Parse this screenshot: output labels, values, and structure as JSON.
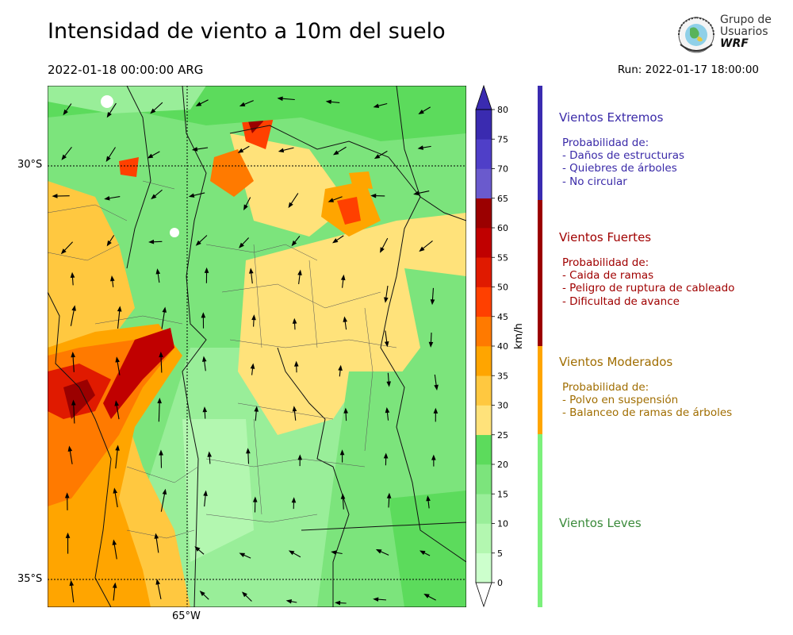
{
  "title": "Intensidad de viento a 10m del suelo",
  "valid_time": "2022-01-18 00:00:00 ARG",
  "run_time": "Run: 2022-01-17 18:00:00",
  "logo": {
    "line1": "Grupo de",
    "line2": "Usuarios",
    "line3": "WRF"
  },
  "map": {
    "lat_labels": [
      "30°S",
      "35°S"
    ],
    "lon_labels": [
      "65°W"
    ]
  },
  "colorbar": {
    "units": "km/h",
    "ticks": [
      "0",
      "5",
      "10",
      "15",
      "20",
      "25",
      "30",
      "35",
      "40",
      "45",
      "50",
      "55",
      "60",
      "65",
      "70",
      "75",
      "80"
    ],
    "colors": [
      "#ffffff",
      "#ccffcc",
      "#b3f7b0",
      "#99ee99",
      "#7ce47c",
      "#5cdb5c",
      "#ffe27a",
      "#ffc840",
      "#ffa500",
      "#ff7a00",
      "#ff4000",
      "#e01a00",
      "#c00000",
      "#9b0000",
      "#6a5acd",
      "#4f3fc8",
      "#3a2bb0"
    ]
  },
  "categories": [
    {
      "name": "Vientos Extremos",
      "color": "#3a2aa8",
      "desc": [
        " Probabilidad de:",
        " - Daños de estructuras",
        " - Quiebres de árboles",
        " - No circular"
      ]
    },
    {
      "name": "Vientos Fuertes",
      "color": "#a00000",
      "desc": [
        " Probabilidad de:",
        " - Caida de ramas",
        " - Peligro de ruptura de cableado",
        " - Dificultad de avance"
      ]
    },
    {
      "name": "Vientos Moderados",
      "color": "#a06d00",
      "desc": [
        " Probabilidad de:",
        " - Polvo en suspensión",
        " - Balanceo de ramas de árboles"
      ]
    },
    {
      "name": "Vientos Leves",
      "color": "#3a8a3a",
      "desc": []
    }
  ],
  "category_bar_colors": [
    "#3a2bb0",
    "#9b0000",
    "#ffa500",
    "#7cf07c"
  ]
}
